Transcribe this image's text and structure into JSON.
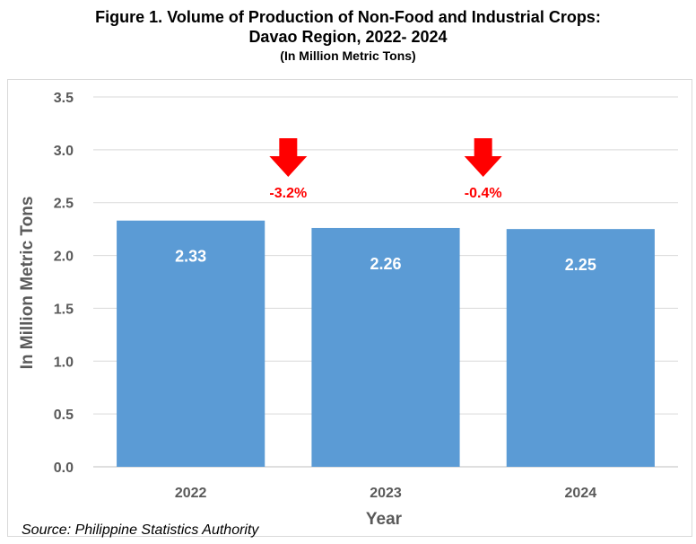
{
  "header": {
    "title_line1": "Figure 1. Volume of Production of Non-Food and Industrial Crops:",
    "title_line2": "Davao Region, 2022- 2024",
    "subtitle": "(In Million Metric Tons)"
  },
  "footer": {
    "source": "Source: Philippine Statistics Authority"
  },
  "chart_data": {
    "type": "bar",
    "title": "Figure 1. Volume of Production of Non-Food and Industrial Crops: Davao Region, 2022- 2024",
    "subtitle": "(In Million Metric Tons)",
    "xlabel": "Year",
    "ylabel": "In Million Metric Tons",
    "categories": [
      "2022",
      "2023",
      "2024"
    ],
    "values": [
      2.33,
      2.26,
      2.25
    ],
    "data_labels": [
      "2.33",
      "2.26",
      "2.25"
    ],
    "ylim": [
      0,
      3.5
    ],
    "yticks": [
      0.0,
      0.5,
      1.0,
      1.5,
      2.0,
      2.5,
      3.0,
      3.5
    ],
    "ytick_labels": [
      "0.0",
      "0.5",
      "1.0",
      "1.5",
      "2.0",
      "2.5",
      "3.0",
      "3.5"
    ],
    "grid": true,
    "legend": "none",
    "bar_color": "#5b9bd5",
    "annotations": [
      {
        "text": "-3.2%",
        "between": [
          "2022",
          "2023"
        ],
        "color": "#ff0000"
      },
      {
        "text": "-0.4%",
        "between": [
          "2023",
          "2024"
        ],
        "color": "#ff0000"
      }
    ]
  }
}
